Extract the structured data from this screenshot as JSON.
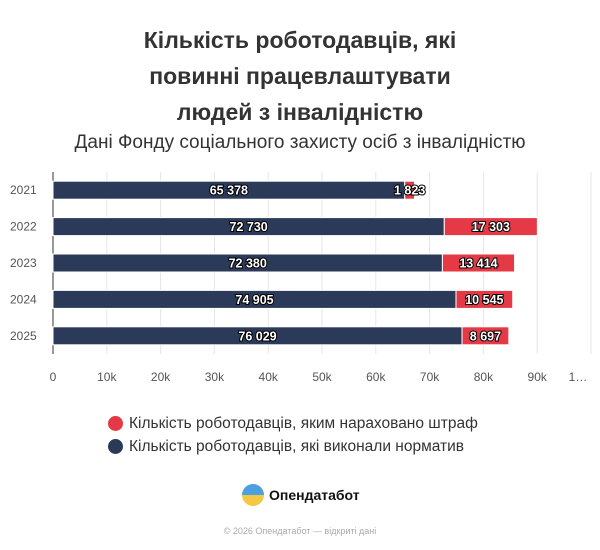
{
  "chart_data": {
    "type": "bar",
    "orientation": "horizontal",
    "stacked": true,
    "title": "Кількість роботодавців, які повинні працевлаштувати людей з інвалідністю",
    "title_lines": [
      "Кількість роботодавців, які",
      "повинні працевлаштувати",
      "людей з інвалідністю"
    ],
    "subtitle": "Дані Фонду соціального захисту осіб з інвалідністю",
    "categories": [
      "2021",
      "2022",
      "2023",
      "2024",
      "2025"
    ],
    "series": [
      {
        "name": "Кількість роботодавців, які виконали норматив",
        "color": "#2c3a5a",
        "values": [
          65378,
          72730,
          72380,
          74905,
          76029
        ],
        "labels": [
          "65 378",
          "72 730",
          "72 380",
          "74 905",
          "76 029"
        ]
      },
      {
        "name": "Кількість роботодавців, яким нараховано штраф",
        "color": "#e63946",
        "values": [
          1823,
          17303,
          13414,
          10545,
          8697
        ],
        "labels": [
          "1 823",
          "17 303",
          "13 414",
          "10 545",
          "8 697"
        ]
      }
    ],
    "xlim": [
      0,
      100000
    ],
    "x_ticks": [
      "0",
      "10k",
      "20k",
      "30k",
      "40k",
      "50k",
      "60k",
      "70k",
      "80k",
      "90k",
      "1…"
    ],
    "grid": true,
    "legend_position": "bottom"
  },
  "legend": [
    {
      "label": "Кількість роботодавців, яким нараховано штраф",
      "color": "#e63946"
    },
    {
      "label": "Кількість роботодавців, які виконали норматив",
      "color": "#2c3a5a"
    }
  ],
  "branding": {
    "logo_text": "Опендатабот",
    "footer": "© 2026 Опендатабот — відкриті дані"
  }
}
